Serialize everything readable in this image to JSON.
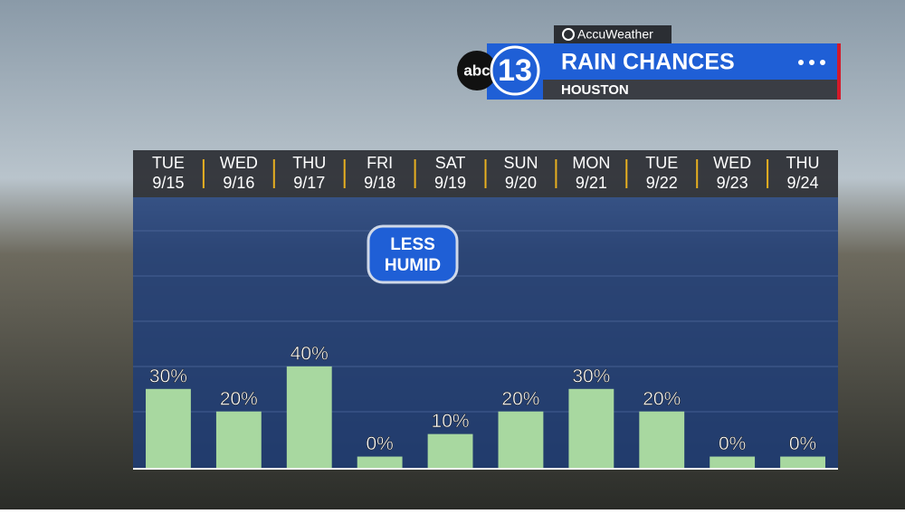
{
  "chart_data": {
    "type": "bar",
    "title": "RAIN CHANCES",
    "subtitle": "HOUSTON",
    "brand": {
      "provider": "AccuWeather",
      "network": "abc",
      "channel": "13"
    },
    "annotation": [
      "LESS",
      "HUMID"
    ],
    "day_labels": [
      "TUE",
      "WED",
      "THU",
      "FRI",
      "SAT",
      "SUN",
      "MON",
      "TUE",
      "WED",
      "THU"
    ],
    "categories": [
      "9/15",
      "9/16",
      "9/17",
      "9/18",
      "9/19",
      "9/20",
      "9/21",
      "9/22",
      "9/23",
      "9/24"
    ],
    "values": [
      30,
      20,
      40,
      0,
      10,
      20,
      30,
      20,
      0,
      0
    ],
    "value_labels": [
      "30%",
      "20%",
      "40%",
      "0%",
      "10%",
      "20%",
      "30%",
      "20%",
      "0%",
      "0%"
    ],
    "color": "#a8d8a0",
    "ylim": [
      -5,
      115
    ]
  }
}
